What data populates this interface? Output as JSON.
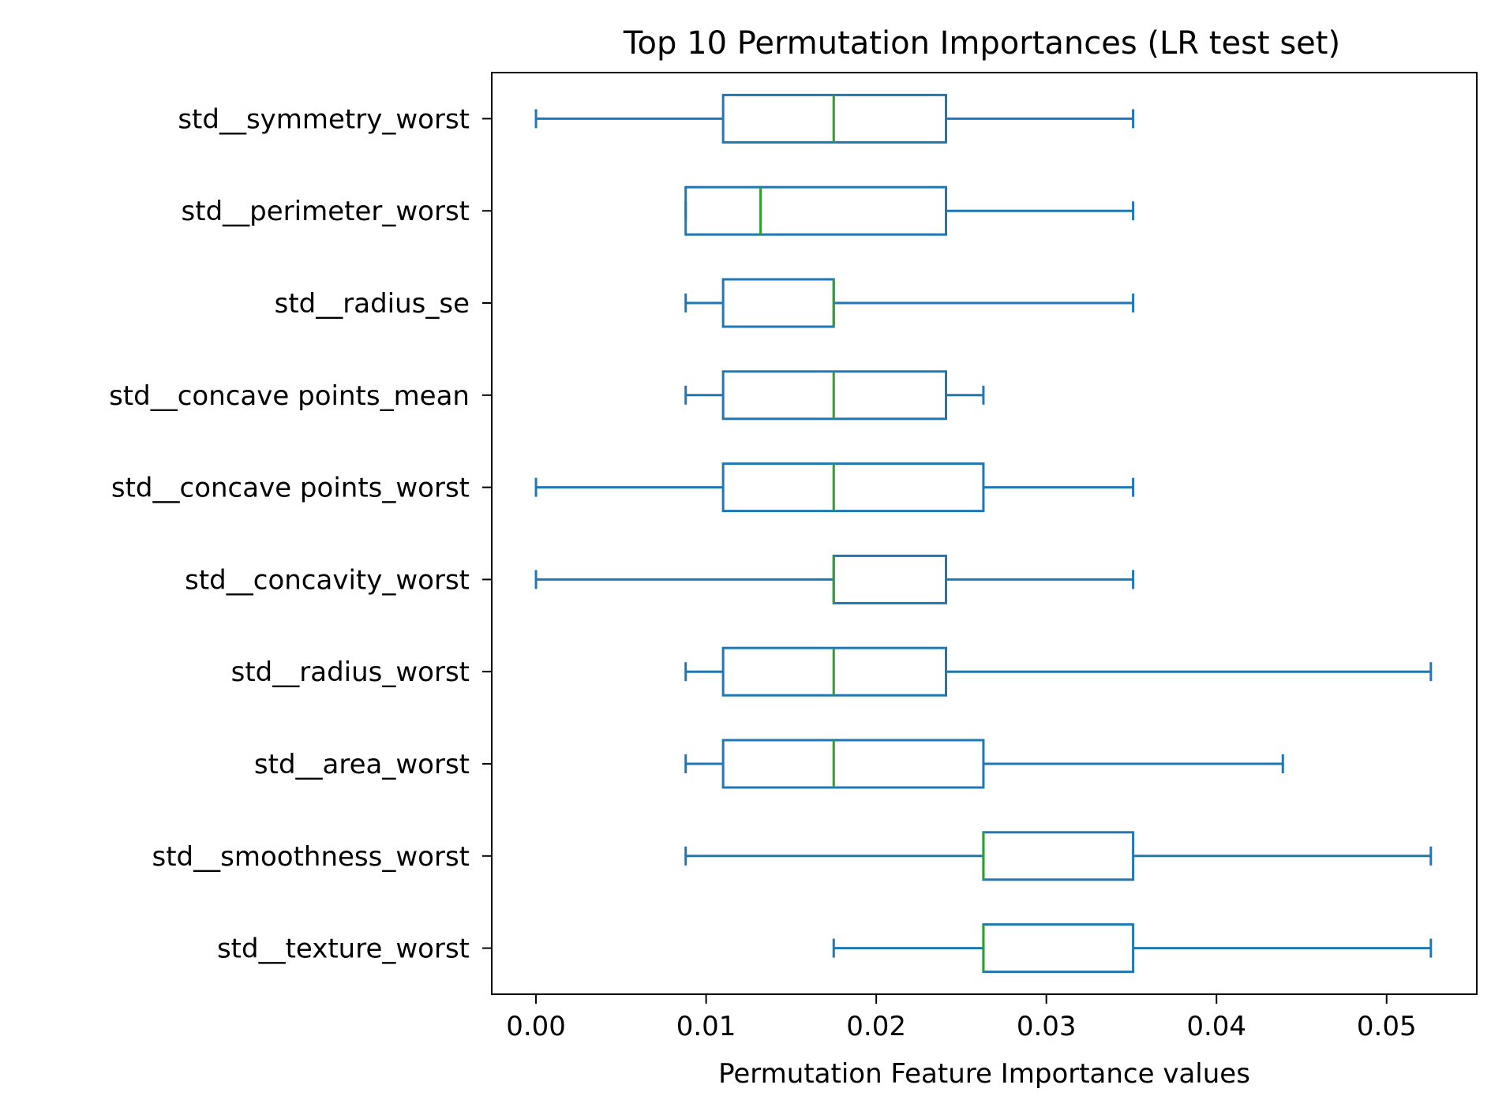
{
  "chart_data": {
    "type": "boxplot",
    "orientation": "horizontal",
    "title": "Top 10 Permutation Importances (LR test set)",
    "xlabel": "Permutation Feature Importance values",
    "ylabel": "",
    "xlim": [
      -0.0026,
      0.0553
    ],
    "xticks": [
      0.0,
      0.01,
      0.02,
      0.03,
      0.04,
      0.05
    ],
    "xtick_labels": [
      "0.00",
      "0.01",
      "0.02",
      "0.03",
      "0.04",
      "0.05"
    ],
    "grid": false,
    "colors": {
      "box": "#1f77b4",
      "median": "#2ca02c",
      "axes": "#000000"
    },
    "categories": [
      "std__symmetry_worst",
      "std__perimeter_worst",
      "std__radius_se",
      "std__concave points_mean",
      "std__concave points_worst",
      "std__concavity_worst",
      "std__radius_worst",
      "std__area_worst",
      "std__smoothness_worst",
      "std__texture_worst"
    ],
    "boxes": [
      {
        "whislo": 0.0,
        "q1": 0.011,
        "med": 0.0175,
        "q3": 0.0241,
        "whishi": 0.0351
      },
      {
        "whislo": 0.0088,
        "q1": 0.0088,
        "med": 0.0132,
        "q3": 0.0241,
        "whishi": 0.0351
      },
      {
        "whislo": 0.0088,
        "q1": 0.011,
        "med": 0.0175,
        "q3": 0.0175,
        "whishi": 0.0351
      },
      {
        "whislo": 0.0088,
        "q1": 0.011,
        "med": 0.0175,
        "q3": 0.0241,
        "whishi": 0.0263
      },
      {
        "whislo": 0.0,
        "q1": 0.011,
        "med": 0.0175,
        "q3": 0.0263,
        "whishi": 0.0351
      },
      {
        "whislo": 0.0,
        "q1": 0.0175,
        "med": 0.0175,
        "q3": 0.0241,
        "whishi": 0.0351
      },
      {
        "whislo": 0.0088,
        "q1": 0.011,
        "med": 0.0175,
        "q3": 0.0241,
        "whishi": 0.0526
      },
      {
        "whislo": 0.0088,
        "q1": 0.011,
        "med": 0.0175,
        "q3": 0.0263,
        "whishi": 0.0439
      },
      {
        "whislo": 0.0088,
        "q1": 0.0263,
        "med": 0.0263,
        "q3": 0.0351,
        "whishi": 0.0526
      },
      {
        "whislo": 0.0175,
        "q1": 0.0263,
        "med": 0.0263,
        "q3": 0.0351,
        "whishi": 0.0526
      }
    ]
  }
}
